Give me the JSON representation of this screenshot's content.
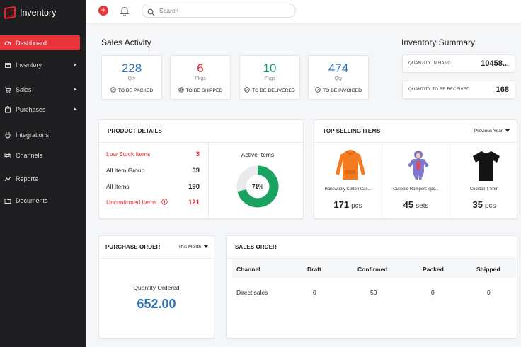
{
  "app": {
    "name": "Inventory"
  },
  "colors": {
    "accent": "#e9343a",
    "link_blue": "#2f74b5",
    "green": "#1aa260",
    "sidebar_bg": "#1f1f21"
  },
  "sidebar": {
    "items": [
      {
        "label": "Dashboard",
        "icon": "dashboard-icon",
        "active": true,
        "has_arrow": false
      },
      {
        "label": "Inventory",
        "icon": "box-icon",
        "active": false,
        "has_arrow": true
      },
      {
        "label": "Sales",
        "icon": "cart-icon",
        "active": false,
        "has_arrow": true
      },
      {
        "label": "Purchases",
        "icon": "bag-icon",
        "active": false,
        "has_arrow": true
      },
      {
        "label": "Integrations",
        "icon": "plug-icon",
        "active": false,
        "has_arrow": false
      },
      {
        "label": "Channels",
        "icon": "channels-icon",
        "active": false,
        "has_arrow": false
      },
      {
        "label": "Reports",
        "icon": "reports-icon",
        "active": false,
        "has_arrow": false
      },
      {
        "label": "Documents",
        "icon": "folder-icon",
        "active": false,
        "has_arrow": false
      }
    ]
  },
  "topbar": {
    "search_placeholder": "Search"
  },
  "sales_activity": {
    "title": "Sales Activity",
    "cards": [
      {
        "value": "228",
        "unit": "Qty",
        "label": "TO BE PACKED",
        "color": "#2f74b5"
      },
      {
        "value": "6",
        "unit": "Pkgs",
        "label": "TO BE SHIPPED",
        "color": "#e0262b"
      },
      {
        "value": "10",
        "unit": "Pkgs",
        "label": "TO BE DELIVERED",
        "color": "#1aa260"
      },
      {
        "value": "474",
        "unit": "Qty",
        "label": "TO BE INVOICED",
        "color": "#2f74b5"
      }
    ]
  },
  "inventory_summary": {
    "title": "Inventory Summary",
    "rows": [
      {
        "label": "QUANTITY IN HAND",
        "value": "10458..."
      },
      {
        "label": "QUANTITY TO BE RECEIVED",
        "value": "168"
      }
    ]
  },
  "product_details": {
    "title": "PRODUCT DETAILS",
    "rows": [
      {
        "label": "Low Stock Items",
        "value": "3",
        "alert": true
      },
      {
        "label": "All Item Group",
        "value": "39",
        "alert": false
      },
      {
        "label": "All Items",
        "value": "190",
        "alert": false
      },
      {
        "label": "Unconfirmed Items",
        "value": "121",
        "alert": true
      }
    ],
    "active_items": {
      "title": "Active Items",
      "percent": 71,
      "percent_label": "71%"
    }
  },
  "top_selling": {
    "title": "TOP SELLING ITEMS",
    "filter": "Previous Year",
    "items": [
      {
        "name": "Hanswooly Cotton Cas...",
        "qty": "171",
        "unit": "pcs",
        "image": "hoodie"
      },
      {
        "name": "Cutiepie Rompers-spo...",
        "qty": "45",
        "unit": "sets",
        "image": "romper"
      },
      {
        "name": "Cocktail T-Shirt",
        "qty": "35",
        "unit": "pcs",
        "image": "tshirt"
      }
    ]
  },
  "purchase_order": {
    "title": "PURCHASE ORDER",
    "filter": "This Month",
    "label": "Quantity Ordered",
    "value": "652.00"
  },
  "sales_order": {
    "title": "SALES ORDER",
    "columns": [
      "Channel",
      "Draft",
      "Confirmed",
      "Packed",
      "Shipped"
    ],
    "rows": [
      [
        "Direct sales",
        "0",
        "50",
        "0",
        "0"
      ]
    ]
  }
}
